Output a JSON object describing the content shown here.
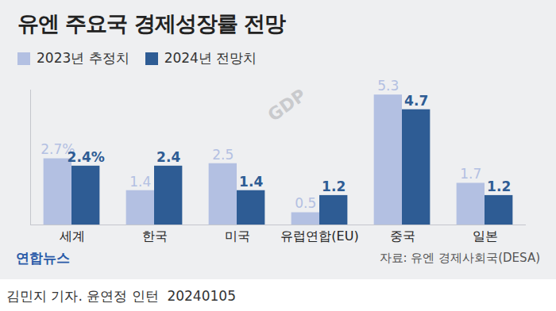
{
  "chart_data": {
    "type": "bar",
    "title": "유엔 주요국 경제성장률 전망",
    "categories": [
      "세계",
      "한국",
      "미국",
      "유럽연합(EU)",
      "중국",
      "일본"
    ],
    "series": [
      {
        "name": "2023년 추정치",
        "color": "#b3c0e2",
        "values": [
          2.7,
          1.4,
          2.5,
          0.5,
          5.3,
          1.7
        ],
        "value_labels": [
          "2.7%",
          "1.4",
          "2.5",
          "0.5",
          "5.3",
          "1.7"
        ]
      },
      {
        "name": "2024년 전망치",
        "color": "#2e5c94",
        "values": [
          2.4,
          2.4,
          1.4,
          1.2,
          4.7,
          1.2
        ],
        "value_labels": [
          "2.4%",
          "2.4",
          "1.4",
          "1.2",
          "4.7",
          "1.2"
        ]
      }
    ],
    "ylim": [
      0,
      5.5
    ],
    "tick_labels": "x",
    "data_labels": true,
    "legend": "top-left",
    "icon_text": "GDP",
    "logo": "연합뉴스",
    "source": "자료: 유엔 경제사회국(DESA)",
    "byline": "김민지 기자. 윤연정 인턴  20240105"
  }
}
